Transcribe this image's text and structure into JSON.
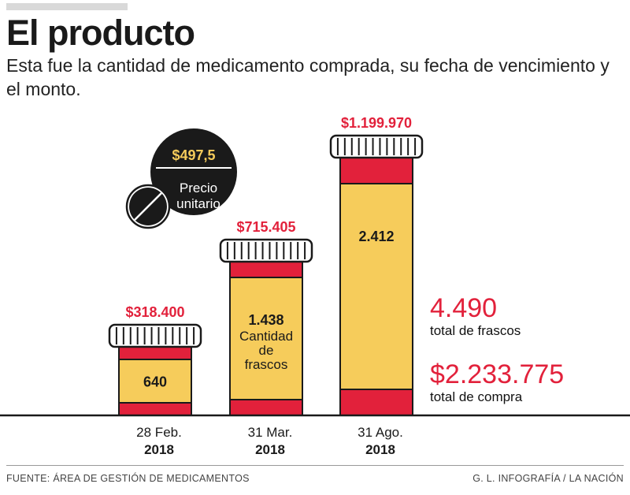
{
  "header": {
    "title": "El producto",
    "subtitle": "Esta fue la cantidad de medicamento comprada, su fecha de vencimiento y el monto."
  },
  "price_badge": {
    "value": "$497,5",
    "label_line1": "Precio",
    "label_line2": "unitario"
  },
  "totals": {
    "frascos_value": "4.490",
    "frascos_label": "total de frascos",
    "compra_value": "$2.233.775",
    "compra_label": "total de compra"
  },
  "footer": {
    "source": "FUENTE: ÁREA DE GESTIÓN DE MEDICAMENTOS",
    "credit": "G. L. INFOGRAFÍA / LA NACIÓN"
  },
  "colors": {
    "red": "#e2213b",
    "yellow": "#f6cc5b",
    "dark": "#1a1a1a",
    "cap": "#ffffff"
  },
  "chart_data": {
    "type": "bar",
    "categories": [
      "28 Feb. 2018",
      "31 Mar. 2018",
      "31 Ago. 2018"
    ],
    "date_lines": [
      "28 Feb.",
      "31 Mar.",
      "31 Ago."
    ],
    "year_lines": [
      "2018",
      "2018",
      "2018"
    ],
    "series": [
      {
        "name": "Cantidad de frascos",
        "values": [
          640,
          1438,
          2412
        ]
      },
      {
        "values": [
          318400,
          715405,
          1199970
        ]
      }
    ],
    "quantity_labels": [
      "640",
      "1.438",
      "2.412"
    ],
    "amount_labels": [
      "$318.400",
      "$715.405",
      "$1.199.970"
    ],
    "bar_caption_lines": [
      "Cantidad",
      "de",
      "frascos"
    ]
  }
}
